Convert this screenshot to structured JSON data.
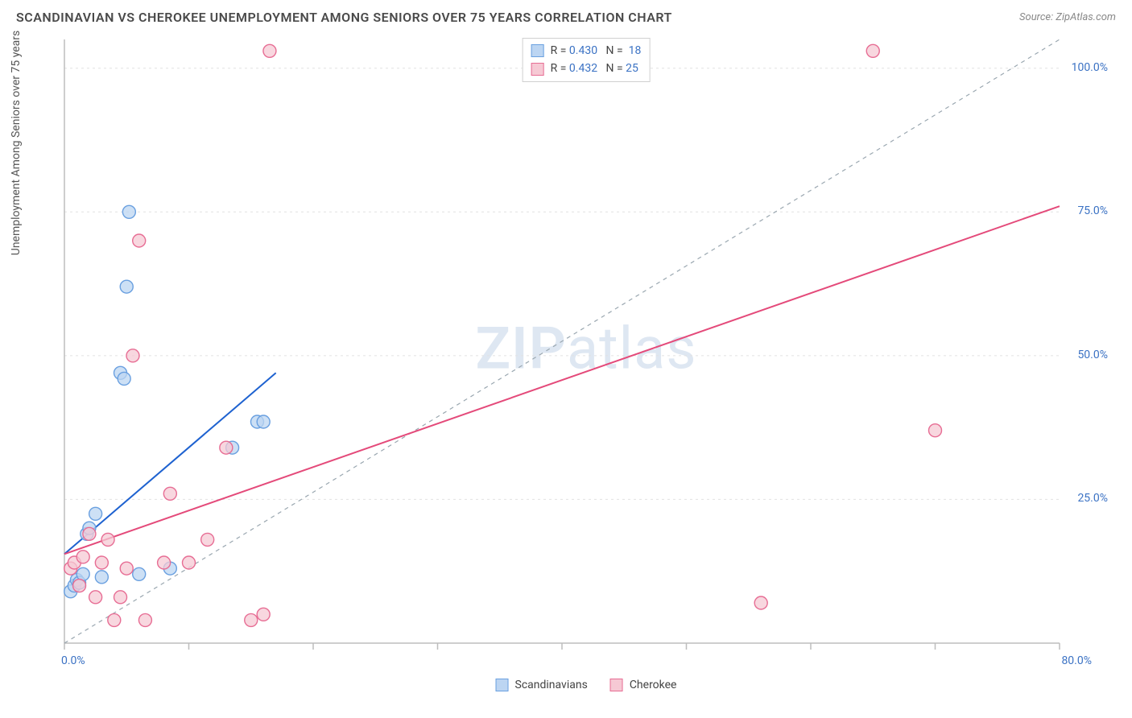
{
  "title": "SCANDINAVIAN VS CHEROKEE UNEMPLOYMENT AMONG SENIORS OVER 75 YEARS CORRELATION CHART",
  "source": "Source: ZipAtlas.com",
  "y_axis_label": "Unemployment Among Seniors over 75 years",
  "watermark_a": "ZIP",
  "watermark_b": "atlas",
  "chart": {
    "type": "scatter",
    "background_color": "#ffffff",
    "grid_color": "#e2e2e2",
    "axis_color": "#bdbdbd",
    "tick_color": "#bdbdbd",
    "xlim": [
      0,
      80
    ],
    "ylim": [
      0,
      105
    ],
    "x_ticks": [
      0,
      10,
      20,
      30,
      40,
      50,
      60,
      70,
      80
    ],
    "x_tick_labels": {
      "0": "0.0%",
      "80": "80.0%"
    },
    "y_grid": [
      25,
      50,
      75,
      100
    ],
    "y_tick_labels": {
      "25": "25.0%",
      "50": "50.0%",
      "75": "75.0%",
      "100": "100.0%"
    },
    "identity_line": {
      "color": "#9aa7b0",
      "dash": "5,5",
      "from": [
        0,
        0
      ],
      "to": [
        105,
        105
      ]
    },
    "series": [
      {
        "name": "Scandinavians",
        "marker_fill": "#bcd5f2",
        "marker_stroke": "#6aa0e0",
        "line_color": "#1e62d0",
        "line_width": 2,
        "marker_radius": 8,
        "R": "0.430",
        "N": "18",
        "trend": {
          "x1": 0,
          "y1": 15.5,
          "x2": 17,
          "y2": 47
        },
        "points": [
          [
            0.5,
            9
          ],
          [
            0.8,
            10
          ],
          [
            1.0,
            11
          ],
          [
            1.2,
            10.5
          ],
          [
            1.5,
            12
          ],
          [
            1.8,
            19
          ],
          [
            2.0,
            20
          ],
          [
            2.5,
            22.5
          ],
          [
            3.0,
            11.5
          ],
          [
            4.5,
            47
          ],
          [
            4.8,
            46
          ],
          [
            5.0,
            62
          ],
          [
            5.2,
            75
          ],
          [
            6.0,
            12
          ],
          [
            8.5,
            13
          ],
          [
            13.5,
            34
          ],
          [
            15.5,
            38.5
          ],
          [
            16.0,
            38.5
          ]
        ]
      },
      {
        "name": "Cherokee",
        "marker_fill": "#f6c9d4",
        "marker_stroke": "#e76d94",
        "line_color": "#e44a7a",
        "line_width": 2,
        "marker_radius": 8,
        "R": "0.432",
        "N": "25",
        "trend": {
          "x1": 0,
          "y1": 15.5,
          "x2": 80,
          "y2": 76
        },
        "points": [
          [
            0.5,
            13
          ],
          [
            0.8,
            14
          ],
          [
            1.2,
            10
          ],
          [
            1.5,
            15
          ],
          [
            2.0,
            19
          ],
          [
            2.5,
            8
          ],
          [
            3.0,
            14
          ],
          [
            3.5,
            18
          ],
          [
            4.0,
            4
          ],
          [
            4.5,
            8
          ],
          [
            5.0,
            13
          ],
          [
            5.5,
            50
          ],
          [
            6.0,
            70
          ],
          [
            6.5,
            4
          ],
          [
            8.0,
            14
          ],
          [
            8.5,
            26
          ],
          [
            10.0,
            14
          ],
          [
            11.5,
            18
          ],
          [
            13.0,
            34
          ],
          [
            15.0,
            4
          ],
          [
            16.0,
            5
          ],
          [
            16.5,
            103
          ],
          [
            56.0,
            7
          ],
          [
            65.0,
            103
          ],
          [
            70.0,
            37
          ]
        ]
      }
    ]
  },
  "legend_bottom": [
    {
      "label": "Scandinavians",
      "fill": "#bcd5f2",
      "stroke": "#6aa0e0"
    },
    {
      "label": "Cherokee",
      "fill": "#f6c9d4",
      "stroke": "#e76d94"
    }
  ]
}
